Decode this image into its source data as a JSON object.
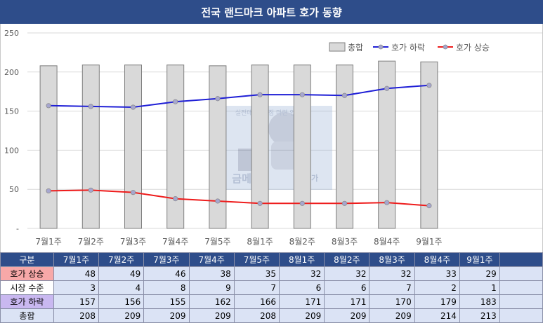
{
  "title": "전국 랜드마크 아파트 호가 동향",
  "chart_data": {
    "type": "bar",
    "categories": [
      "7월1주",
      "7월2주",
      "7월3주",
      "7월4주",
      "7월5주",
      "8월1주",
      "8월2주",
      "8월3주",
      "8월4주",
      "9월1주"
    ],
    "series": [
      {
        "name": "총합",
        "kind": "bar",
        "values": [
          208,
          209,
          209,
          209,
          208,
          209,
          209,
          209,
          214,
          213
        ],
        "color": "#d9d9d9"
      },
      {
        "name": "호가 하락",
        "kind": "line",
        "values": [
          157,
          156,
          155,
          162,
          166,
          171,
          171,
          170,
          179,
          183
        ],
        "color": "#1f1fd6"
      },
      {
        "name": "호가 상승",
        "kind": "line",
        "values": [
          48,
          49,
          46,
          38,
          35,
          32,
          32,
          32,
          33,
          29
        ],
        "color": "#ee1c1c"
      }
    ],
    "yticks": [
      "250",
      "200",
      "150",
      "100",
      "50",
      "-"
    ],
    "ylim": [
      0,
      250
    ],
    "legend_position": "top-right",
    "grid": true
  },
  "watermark": {
    "text_top": "실전매매 내 집 마련 인생기",
    "text_bottom_left": "금메달",
    "text_bottom_right": "사가"
  },
  "table": {
    "header": [
      "구분",
      "7월1주",
      "7월2주",
      "7월3주",
      "7월4주",
      "7월5주",
      "8월1주",
      "8월2주",
      "8월3주",
      "8월4주",
      "9월1주",
      ""
    ],
    "rows": [
      {
        "label": "호가 상승",
        "values": [
          "48",
          "49",
          "46",
          "38",
          "35",
          "32",
          "32",
          "32",
          "33",
          "29",
          ""
        ]
      },
      {
        "label": "시장 수준",
        "values": [
          "3",
          "4",
          "8",
          "9",
          "7",
          "6",
          "6",
          "7",
          "2",
          "1",
          ""
        ]
      },
      {
        "label": "호가 하락",
        "values": [
          "157",
          "156",
          "155",
          "162",
          "166",
          "171",
          "171",
          "170",
          "179",
          "183",
          ""
        ]
      },
      {
        "label": "총합",
        "values": [
          "208",
          "209",
          "209",
          "209",
          "208",
          "209",
          "209",
          "209",
          "214",
          "213",
          ""
        ]
      }
    ]
  },
  "colors": {
    "header_bg": "#2e4d8a",
    "table_bg": "#dbe3f5",
    "up_label_bg": "#f7a8a8",
    "down_label_bg": "#c9b8f0"
  }
}
